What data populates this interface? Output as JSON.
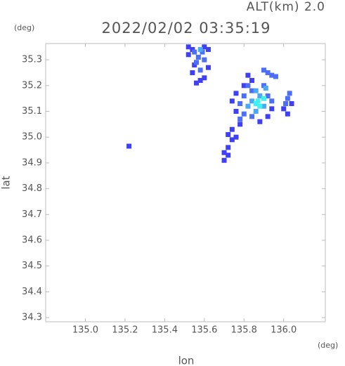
{
  "chart_data": {
    "type": "scatter",
    "title": "2022/02/02 03:35:19",
    "subtitle": "ALT(km) 2.0",
    "x_label": "lon",
    "y_label": "lat",
    "x_unit": "(deg)",
    "y_unit": "(deg)",
    "xlim": [
      134.8,
      136.21
    ],
    "ylim": [
      34.284,
      35.363
    ],
    "xticks": [
      {
        "value": 135,
        "label": "135.0"
      },
      135.2,
      135.4,
      135.6,
      135.8,
      {
        "value": 136,
        "label": "136.0"
      }
    ],
    "yticks": [
      34.3,
      34.4,
      34.5,
      34.6,
      34.7,
      34.8,
      34.9,
      {
        "value": 35,
        "label": "35.0"
      },
      35.1,
      35.2,
      35.3
    ],
    "series": [
      {
        "color": "#3f3ff5",
        "x": [
          135.52,
          135.54,
          135.52,
          135.6,
          135.62,
          135.55,
          135.54,
          135.58,
          135.6,
          135.62,
          135.56,
          135.82,
          135.84,
          135.8,
          135.76,
          135.74,
          135.76,
          135.78,
          135.74,
          135.72,
          135.74,
          135.76,
          135.72,
          135.7,
          135.72,
          135.7,
          135.88,
          135.92,
          135.94,
          136.0,
          136.02,
          136.04,
          135.22
        ],
        "values": [
          35.35,
          35.34,
          35.32,
          35.35,
          35.34,
          35.28,
          35.25,
          35.22,
          35.23,
          35.27,
          35.21,
          35.24,
          35.22,
          35.2,
          35.17,
          35.14,
          35.1,
          35.05,
          35.03,
          35.01,
          34.99,
          35.0,
          34.96,
          34.94,
          34.93,
          34.91,
          35.06,
          35.08,
          35.11,
          35.11,
          35.09,
          35.13,
          34.965
        ]
      },
      {
        "color": "#4d6ef7",
        "x": [
          135.55,
          135.57,
          135.59,
          135.56,
          135.58,
          135.6,
          135.82,
          135.84,
          135.8,
          135.78,
          135.8,
          135.84,
          135.9,
          135.92,
          135.94,
          135.78,
          136.02,
          136.03,
          136.01,
          135.9,
          135.92,
          135.94,
          135.96
        ],
        "values": [
          35.33,
          35.31,
          35.33,
          35.29,
          35.26,
          35.3,
          35.2,
          35.18,
          35.16,
          35.13,
          35.09,
          35.08,
          35.2,
          35.16,
          35.14,
          35.07,
          35.15,
          35.17,
          35.13,
          35.26,
          35.25,
          35.24,
          35.235
        ]
      },
      {
        "color": "#4aa8f5",
        "x": [
          135.86,
          135.84,
          135.82,
          135.86,
          135.9,
          135.88,
          135.91,
          135.58
        ],
        "values": [
          35.18,
          35.14,
          35.12,
          35.1,
          35.12,
          35.16,
          35.19,
          35.34
        ]
      },
      {
        "color": "#3ff0f0",
        "x": [
          135.87,
          135.88,
          135.86,
          135.9
        ],
        "values": [
          35.14,
          35.12,
          35.13,
          35.15
        ]
      }
    ]
  }
}
